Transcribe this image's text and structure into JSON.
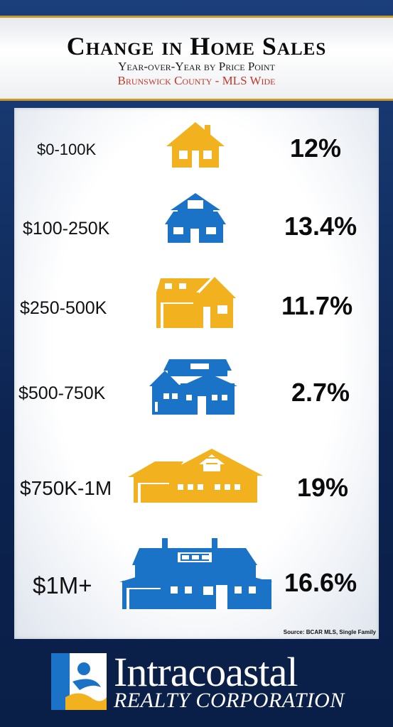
{
  "header": {
    "title": "Change in Home Sales",
    "subtitle": "Year-over-Year by Price Point",
    "region": "Brunswick County - MLS Wide"
  },
  "chart_data": {
    "type": "table",
    "title": "Change in Home Sales",
    "subtitle": "Year-over-Year by Price Point",
    "categories": [
      "$0-100K",
      "$100-250K",
      "$250-500K",
      "$500-750K",
      "$750K-1M",
      "$1M+"
    ],
    "values": [
      12,
      13.4,
      11.7,
      2.7,
      19,
      16.6
    ],
    "value_labels": [
      "12%",
      "13.4%",
      "11.7%",
      "2.7%",
      "19%",
      "16.6%"
    ],
    "icon_colors": [
      "#f2b21f",
      "#1a73c7",
      "#f2b21f",
      "#1a73c7",
      "#f2b21f",
      "#1a73c7"
    ]
  },
  "footer": {
    "source": "Source: BCAR MLS, Single Family",
    "brand": "Intracoastal",
    "brand_sub": "REALTY CORPORATION"
  },
  "colors": {
    "gold": "#f2b21f",
    "blue": "#1a73c7",
    "navy": "#0e2a5c",
    "accent_red": "#c0392b"
  },
  "icons": [
    "small-house-icon",
    "two-story-house-icon",
    "garage-house-icon",
    "large-house-icon",
    "ranch-house-icon",
    "estate-house-icon",
    "intracoastal-logo-icon"
  ]
}
